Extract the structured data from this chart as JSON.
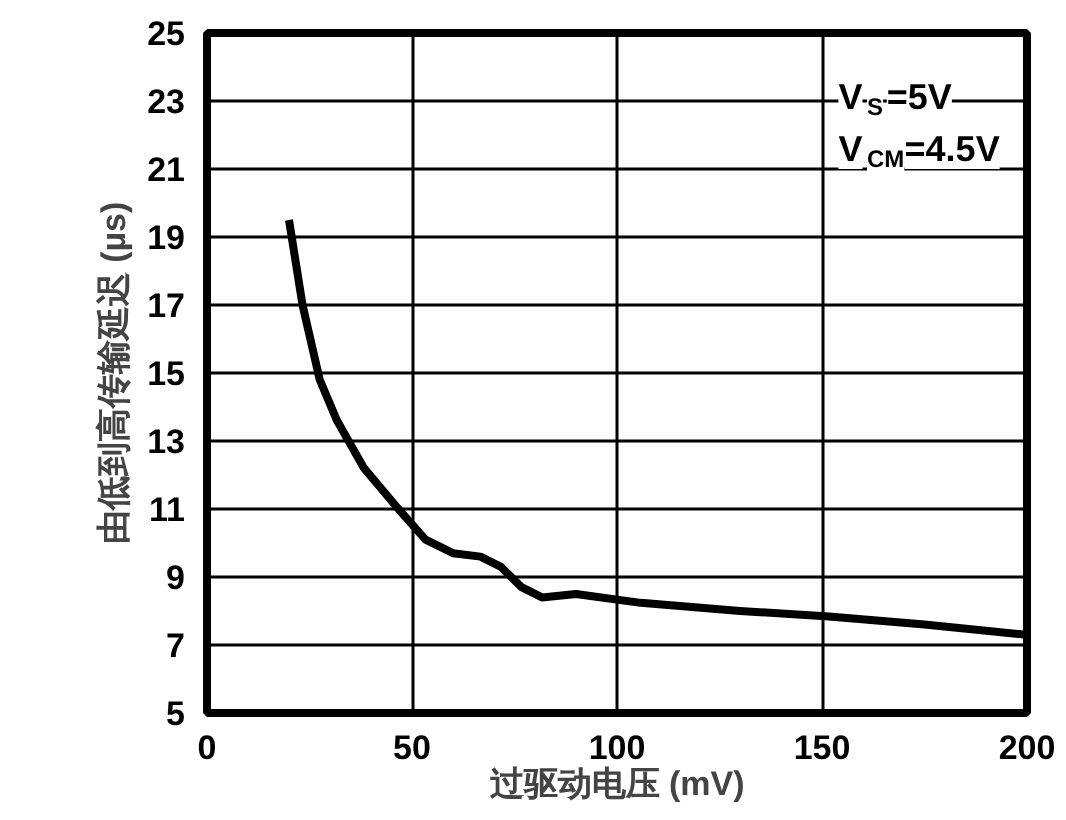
{
  "chart_data": {
    "type": "line",
    "xlabel": "过驱动电压 (mV)",
    "ylabel": "由低到高传输延迟 (µs)",
    "annotations": [
      "V$_{S}$=5V",
      "V$_{CM}$=4.5V"
    ],
    "x": [
      20,
      23.3,
      27.5,
      31.7,
      38.3,
      46.7,
      53.3,
      60,
      66.7,
      71.7,
      76.7,
      81.7,
      90,
      105.8,
      130,
      151.7,
      175,
      200
    ],
    "series": [
      {
        "color": "#000000",
        "values": [
          19.5,
          17,
          14.8,
          13.6,
          12.2,
          11.0,
          10.1,
          9.7,
          9.6,
          9.3,
          8.7,
          8.4,
          8.5,
          8.24,
          8.0,
          7.84,
          7.6,
          7.3
        ]
      }
    ],
    "xlim": [
      0,
      200
    ],
    "ylim": [
      5,
      25
    ],
    "xticks": [
      0,
      50,
      100,
      150,
      200
    ],
    "yticks": [
      5,
      7,
      9,
      11,
      13,
      15,
      17,
      19,
      21,
      23,
      25
    ],
    "grid": true,
    "marker": "none",
    "line_style": "solid"
  }
}
